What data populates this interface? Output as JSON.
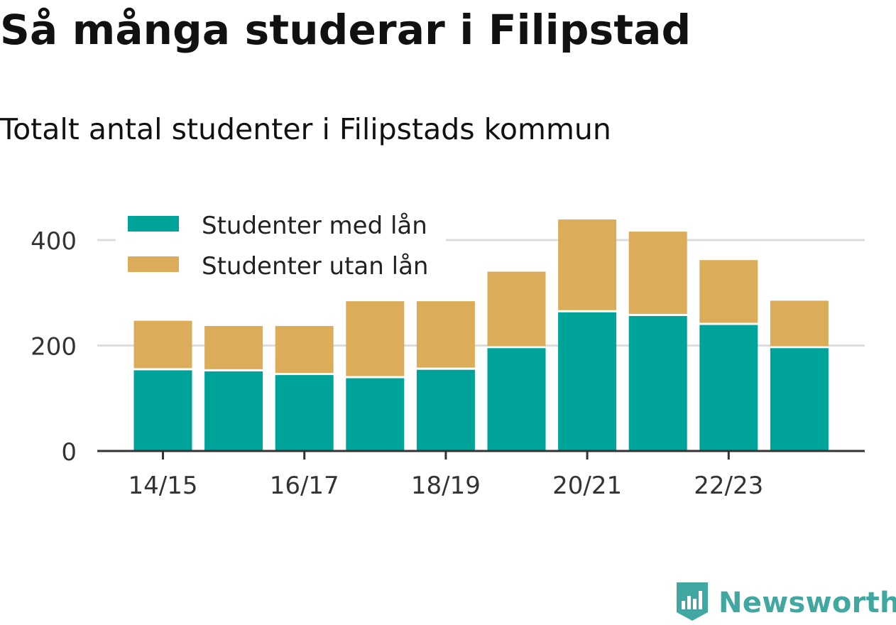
{
  "header": {
    "title": "Så många studerar i Filipstad",
    "subtitle": "Totalt antal studenter i Filipstads kommun"
  },
  "brand": {
    "name": "Newsworthy",
    "icon": "newsworthy-logo-icon",
    "color": "#40a8a0"
  },
  "chart_data": {
    "type": "bar",
    "stacked": true,
    "categories": [
      "14/15",
      "15/16",
      "16/17",
      "17/18",
      "18/19",
      "19/20",
      "20/21",
      "21/22",
      "22/23",
      "23/24"
    ],
    "tick_labels": [
      "14/15",
      "16/17",
      "18/19",
      "20/21",
      "22/23"
    ],
    "series": [
      {
        "name": "Studenter med lån",
        "color": "#00a39a",
        "values": [
          153,
          151,
          144,
          138,
          154,
          195,
          263,
          256,
          239,
          195
        ]
      },
      {
        "name": "Studenter utan lån",
        "color": "#dbad5a",
        "values": [
          94,
          86,
          93,
          146,
          130,
          145,
          176,
          160,
          123,
          90
        ]
      }
    ],
    "ylim": [
      0,
      450
    ],
    "yticks": [
      0,
      200,
      400
    ],
    "grid": true,
    "legend": "top-left",
    "xlabel": "",
    "ylabel": ""
  }
}
